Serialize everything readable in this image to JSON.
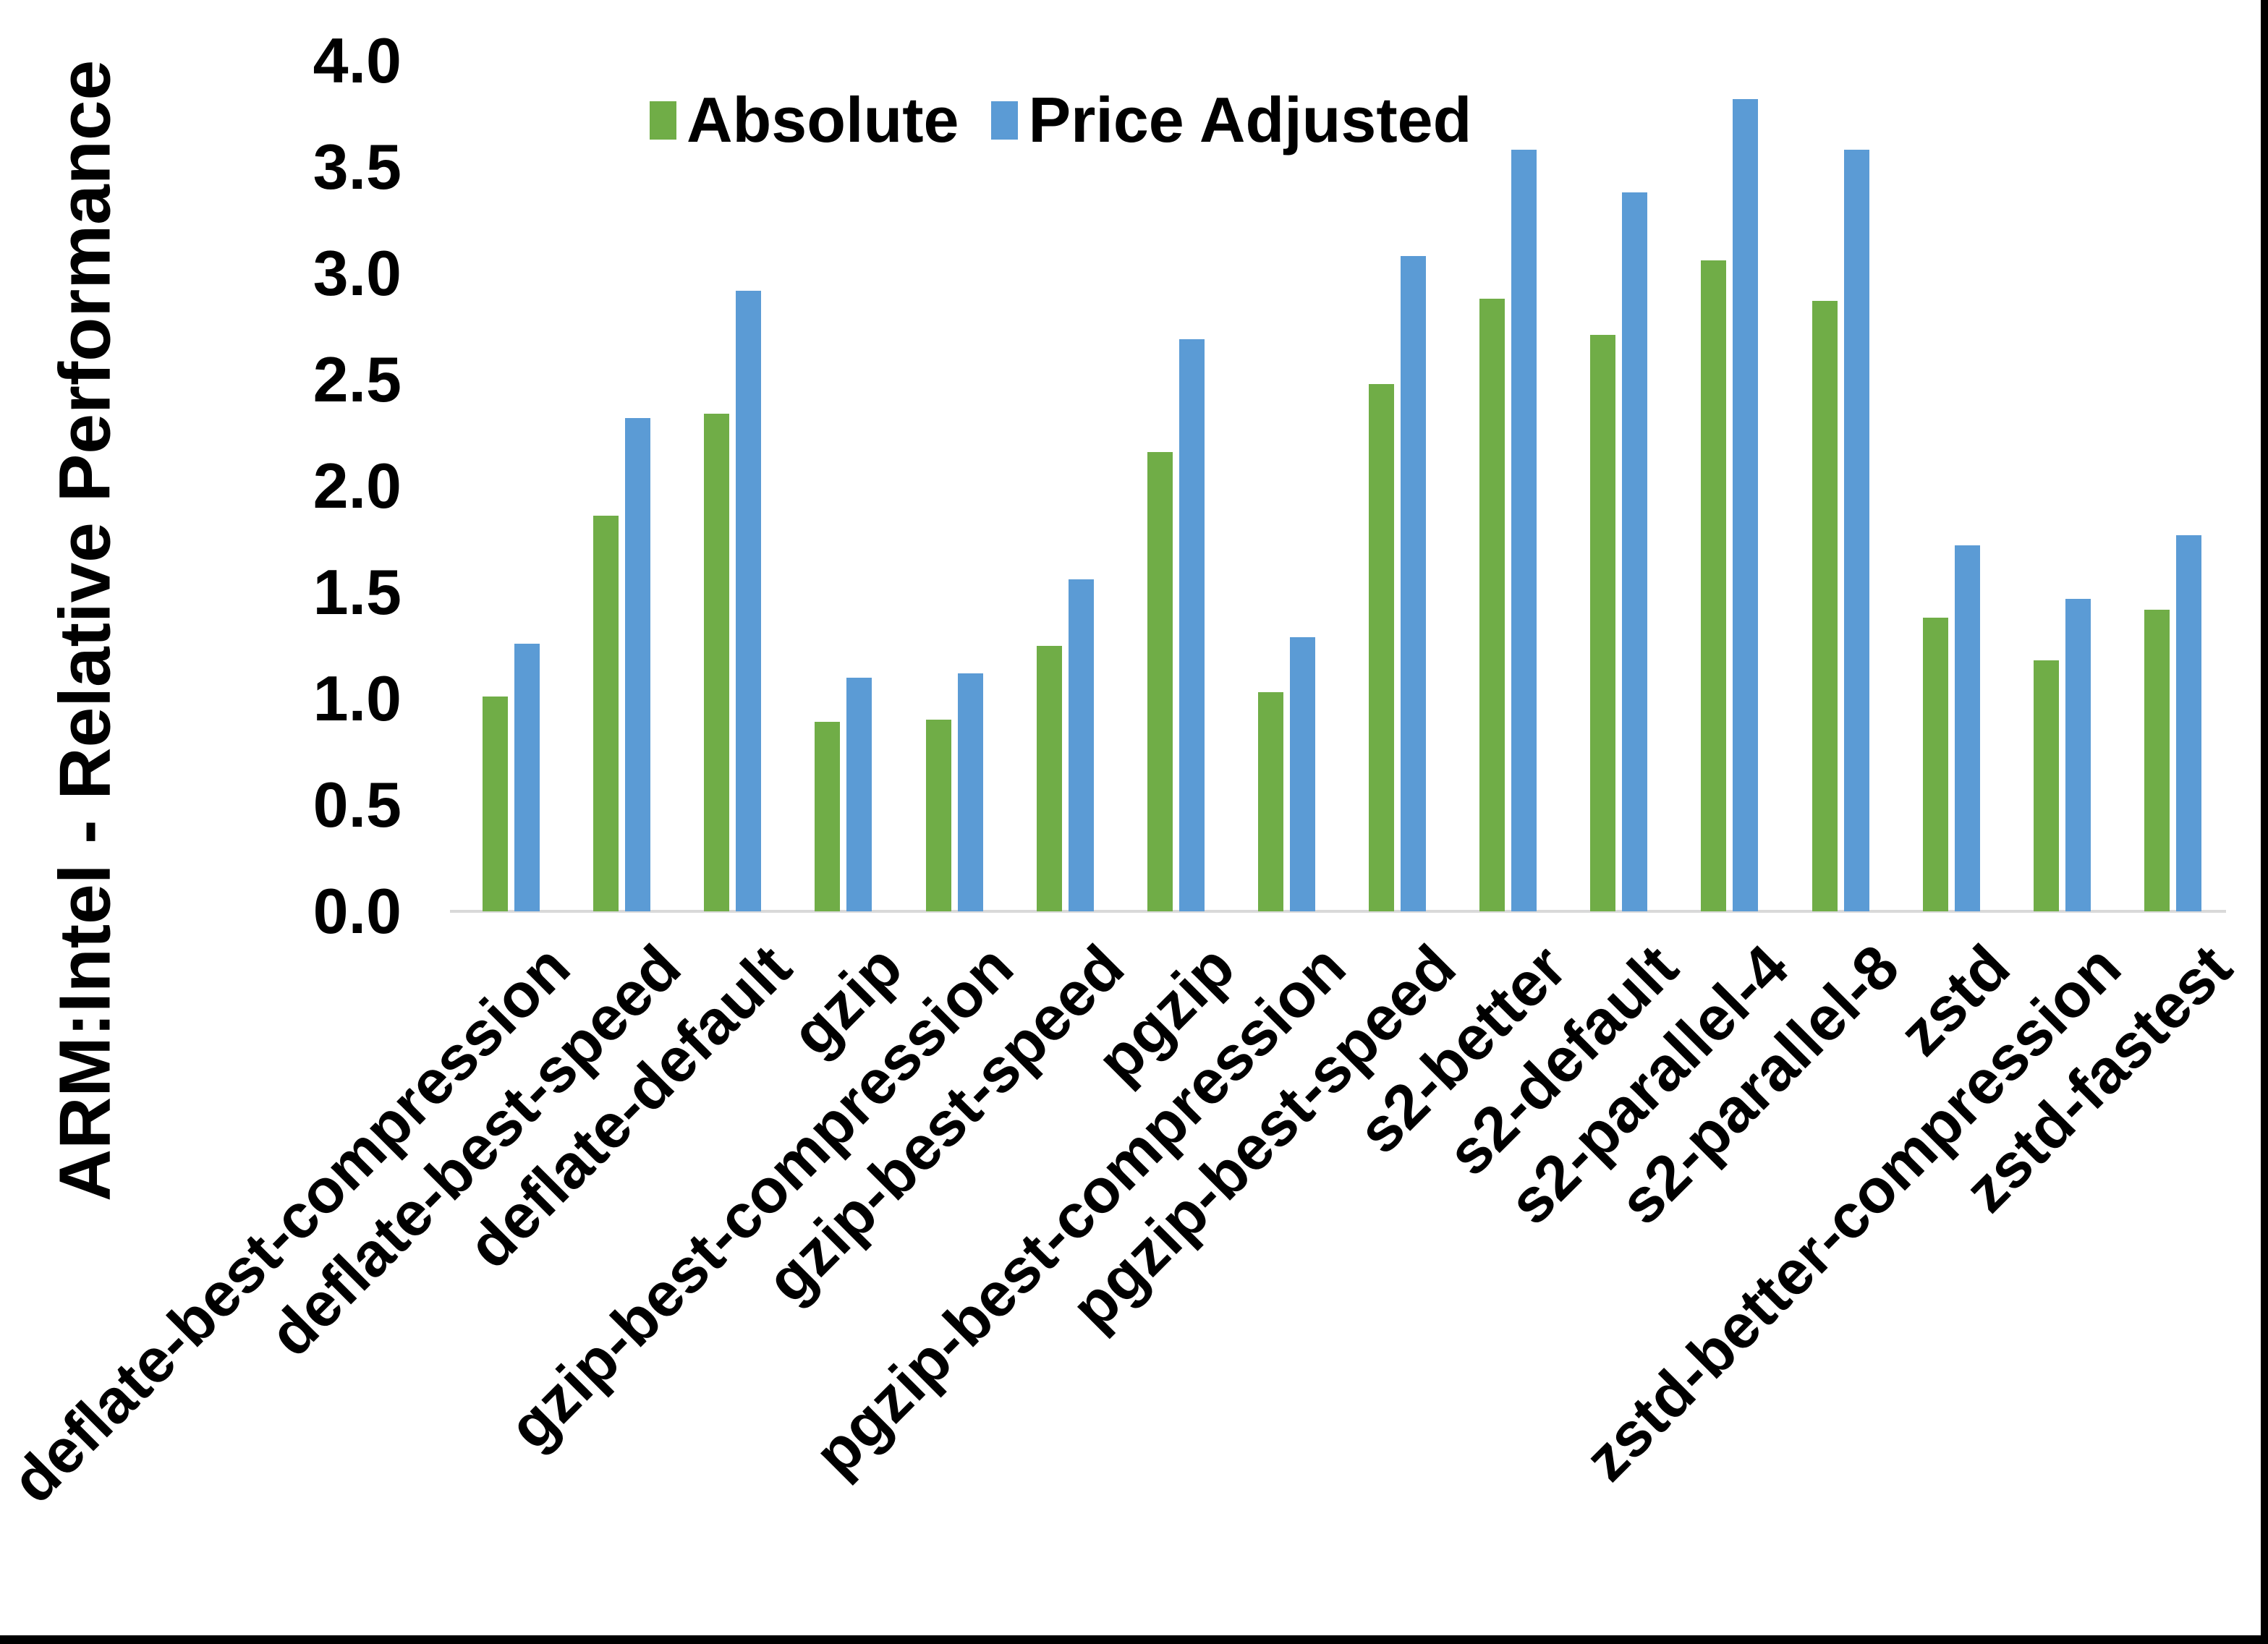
{
  "chart_data": {
    "type": "bar",
    "title": "",
    "xlabel": "",
    "ylabel": "ARM:Intel - Relative Performance",
    "ylim": [
      0.0,
      4.0
    ],
    "ytick_step": 0.5,
    "ytick_labels": [
      "0.0",
      "0.5",
      "1.0",
      "1.5",
      "2.0",
      "2.5",
      "3.0",
      "3.5",
      "4.0"
    ],
    "grid": false,
    "legend_position": "top-center",
    "categories": [
      "deflate-best-compression",
      "deflate-best-speed",
      "deflate-default",
      "gzip",
      "gzip-best-compression",
      "gzip-best-speed",
      "pgzip",
      "pgzip-best-compression",
      "pgzip-best-speed",
      "s2-better",
      "s2-default",
      "s2-parallel-4",
      "s2-parallel-8",
      "zstd",
      "zstd-better-compression",
      "zstd-fastest"
    ],
    "series": [
      {
        "name": "Absolute",
        "color": "#70AD47",
        "values": [
          1.01,
          1.86,
          2.34,
          0.89,
          0.9,
          1.25,
          2.16,
          1.03,
          2.48,
          2.88,
          2.71,
          3.06,
          2.87,
          1.38,
          1.18,
          1.42
        ]
      },
      {
        "name": "Price Adjusted",
        "color": "#5B9BD5",
        "values": [
          1.26,
          2.32,
          2.92,
          1.1,
          1.12,
          1.56,
          2.69,
          1.29,
          3.08,
          3.58,
          3.38,
          3.82,
          3.58,
          1.72,
          1.47,
          1.77
        ]
      }
    ]
  },
  "colors": {
    "axis_line": "#D9D9D9",
    "text": "#000000",
    "frame_border": "#000000",
    "background": "#FFFFFF"
  }
}
